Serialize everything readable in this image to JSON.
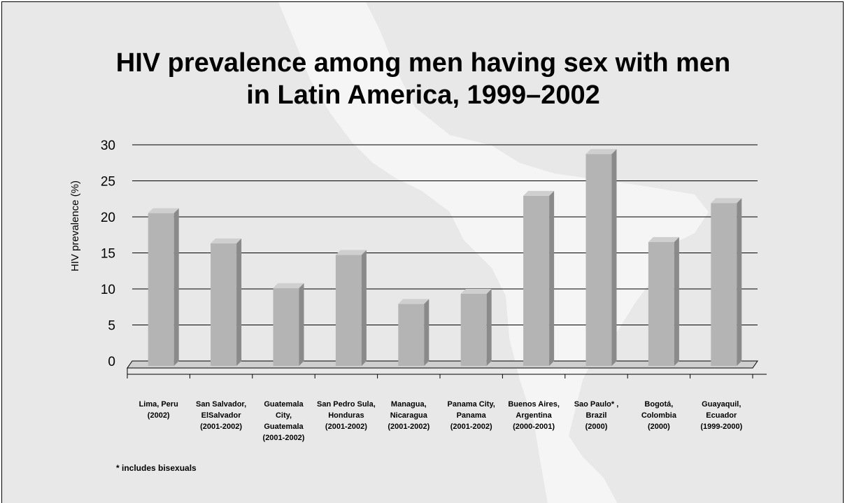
{
  "footnote": "* includes bisexuals",
  "colors": {
    "background": "#e8e8e8",
    "map": "#f5f5f5",
    "bar_front": "#b4b4b4",
    "bar_side": "#8a8a8a",
    "bar_top": "#cfcfcf"
  },
  "chart_data": {
    "type": "bar",
    "title_lines": [
      "HIV prevalence among men having sex with men",
      "in Latin America, 1999–2002"
    ],
    "xlabel": "",
    "ylabel": "HIV prevalence (%)",
    "ylim": [
      0,
      30
    ],
    "yticks": [
      "0",
      "5",
      "10",
      "15",
      "20",
      "25",
      "30"
    ],
    "grid": true,
    "legend": "none",
    "categories": [
      [
        "Lima, Peru",
        "(2002)"
      ],
      [
        "San Salvador,",
        "ElSalvador",
        "(2001-2002)"
      ],
      [
        "Guatemala",
        "City,",
        "Guatemala",
        "(2001-2002)"
      ],
      [
        "San Pedro Sula,",
        "Honduras",
        "(2001-2002)"
      ],
      [
        "Managua,",
        "Nicaragua",
        "(2001-2002)"
      ],
      [
        "Panama City,",
        "Panama",
        "(2001-2002)"
      ],
      [
        "Buenos Aires,",
        "Argentina",
        "(2000-2001)"
      ],
      [
        "Sao Paulo* ,",
        "Brazil",
        "(2000)"
      ],
      [
        "Bogotá,",
        "Colombia",
        "(2000)"
      ],
      [
        "Guayaquil,",
        "Ecuador",
        "(1999-2000)"
      ]
    ],
    "values": [
      21.2,
      17.0,
      10.8,
      15.4,
      8.6,
      10.0,
      23.6,
      29.4,
      17.2,
      22.6
    ]
  }
}
